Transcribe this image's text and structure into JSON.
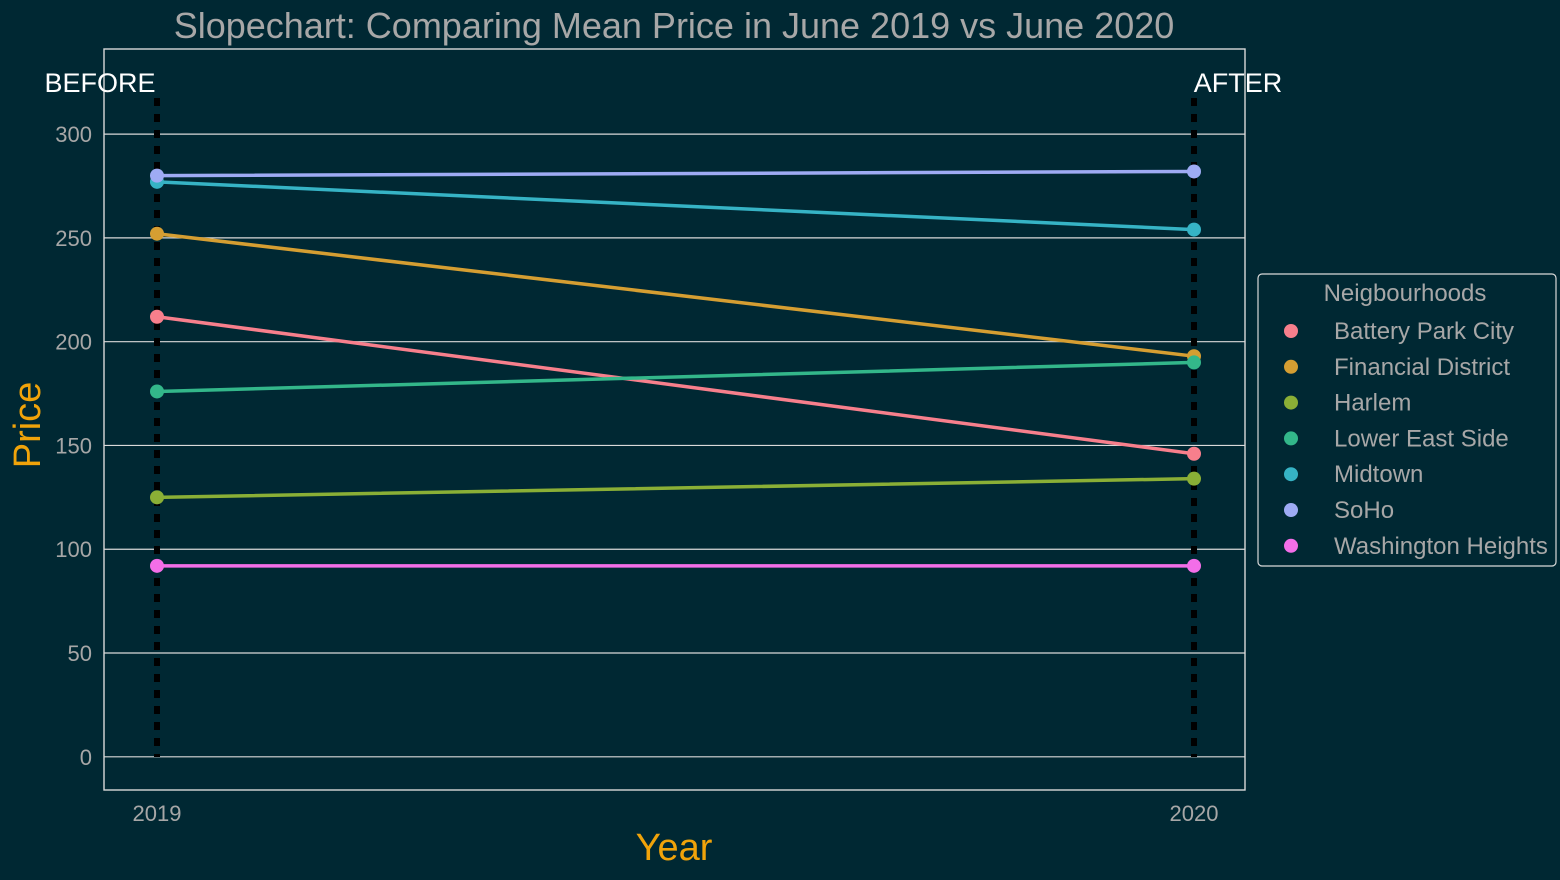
{
  "colors": {
    "background": "#002833",
    "grid": "#d9d9d9",
    "panel_border": "#d9d9d9",
    "muted_text": "#a7a7a7",
    "accent_label": "#f0a30a",
    "white_text": "#ffffff",
    "vline": "#000000"
  },
  "chart_data": {
    "type": "line",
    "title": "Slopechart: Comparing Mean Price in June 2019 vs June 2020",
    "xlabel": "Year",
    "ylabel": "Price",
    "x": [
      "2019",
      "2020"
    ],
    "yticks": [
      0,
      50,
      100,
      150,
      200,
      250,
      300
    ],
    "ylim": [
      -16,
      341
    ],
    "grid": true,
    "annotations": {
      "before": "BEFORE",
      "after": "AFTER"
    },
    "legend": {
      "title": "Neigbourhoods",
      "placement": "right"
    },
    "series": [
      {
        "name": "Battery Park City",
        "values": [
          212,
          146
        ],
        "color": "#f77f8c"
      },
      {
        "name": "Financial District",
        "values": [
          252,
          193
        ],
        "color": "#d59e32"
      },
      {
        "name": "Harlem",
        "values": [
          125,
          134
        ],
        "color": "#8aaf36"
      },
      {
        "name": "Lower East Side",
        "values": [
          176,
          190
        ],
        "color": "#33b78a"
      },
      {
        "name": "Midtown",
        "values": [
          277,
          254
        ],
        "color": "#36b3c5"
      },
      {
        "name": "SoHo",
        "values": [
          280,
          282
        ],
        "color": "#9eabf4"
      },
      {
        "name": "Washington Heights",
        "values": [
          92,
          92
        ],
        "color": "#f36ee8"
      }
    ]
  }
}
